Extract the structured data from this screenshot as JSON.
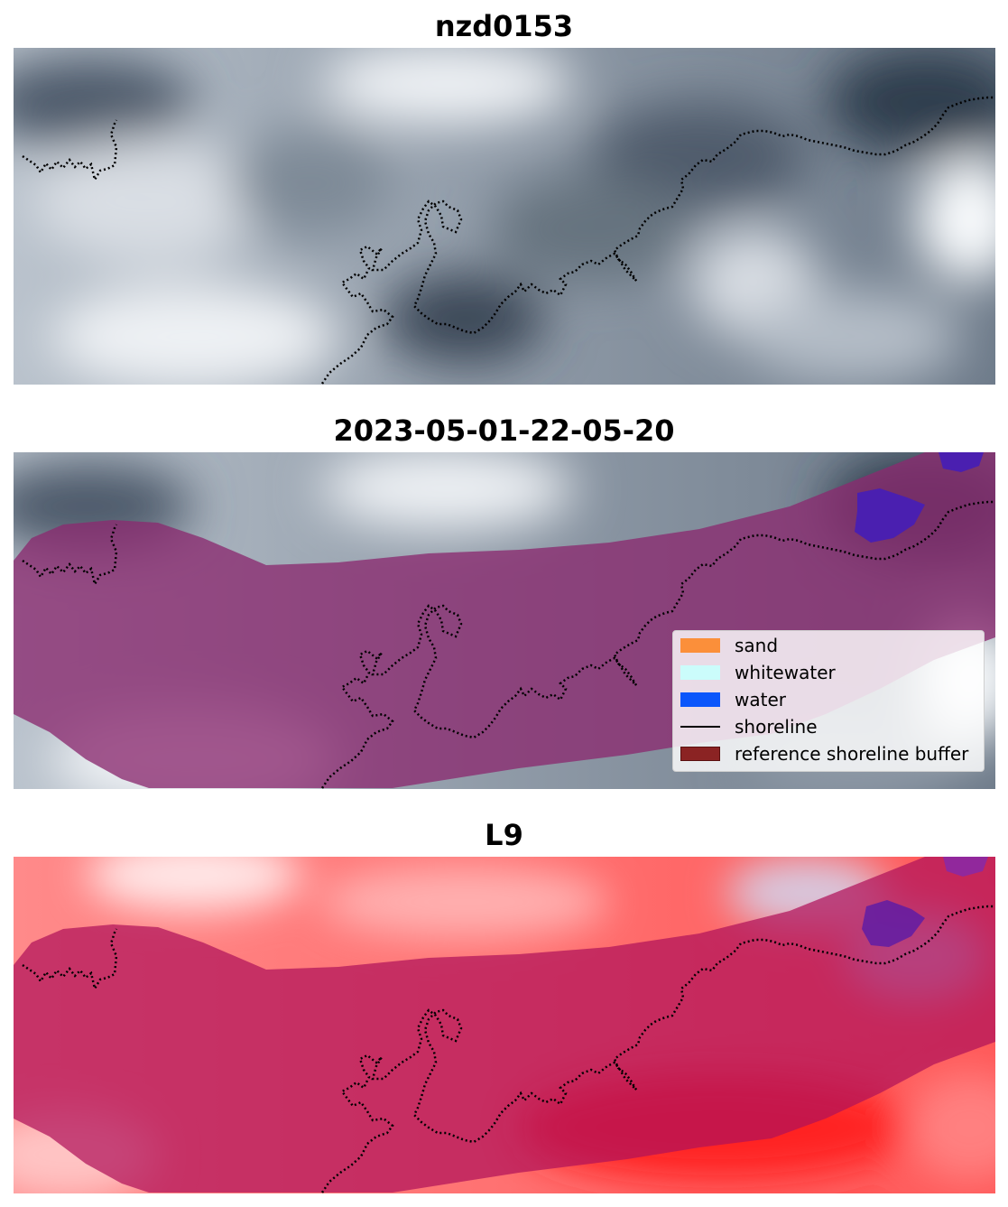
{
  "panels": [
    {
      "title": "nzd0153"
    },
    {
      "title": "2023-05-01-22-05-20"
    },
    {
      "title": "L9"
    }
  ],
  "legend": {
    "items": [
      {
        "label": "sand",
        "color": "#fb8f3a",
        "kind": "patch"
      },
      {
        "label": "whitewater",
        "color": "#cbfcfb",
        "kind": "patch"
      },
      {
        "label": "water",
        "color": "#0b56fb",
        "kind": "patch"
      },
      {
        "label": "shoreline",
        "color": "#000000",
        "kind": "line"
      },
      {
        "label": "reference shoreline buffer",
        "color": "#8b2323",
        "kind": "patch"
      }
    ]
  },
  "colors": {
    "shoreline": "#000000",
    "buffer_overlay": "#8a2a70",
    "water_patch": "#4a1fb0",
    "imagery_gray_dark": "#2f3d4d",
    "imagery_gray_light": "#e8ecf1",
    "ndwi_red": "#ff2a2a"
  }
}
